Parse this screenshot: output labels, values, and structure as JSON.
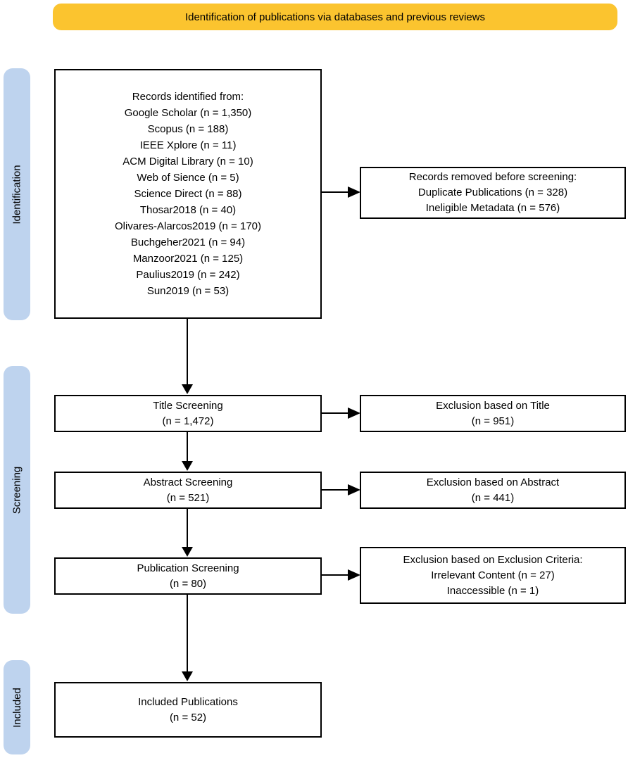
{
  "banner": {
    "title": "Identification of publications via databases and previous reviews"
  },
  "colors": {
    "banner_bg": "#FBC42F",
    "stage_bg": "#BED3EE",
    "ink": "#000000"
  },
  "stages": [
    {
      "label": "Identification"
    },
    {
      "label": "Screening"
    },
    {
      "label": "Included"
    }
  ],
  "boxes": {
    "records_identified": {
      "lines": [
        "Records identified from:",
        "Google Scholar (n = 1,350)",
        "Scopus (n = 188)",
        "IEEE Xplore (n = 11)",
        "ACM Digital Library (n = 10)",
        "Web of Sience (n = 5)",
        "Science Direct (n = 88)",
        "Thosar2018 (n = 40)",
        "Olivares-Alarcos2019 (n = 170)",
        "Buchgeher2021 (n = 94)",
        "Manzoor2021 (n = 125)",
        "Paulius2019 (n = 242)",
        "Sun2019 (n = 53)"
      ]
    },
    "records_removed": {
      "lines": [
        "Records removed before screening:",
        "Duplicate Publications (n = 328)",
        "Ineligible Metadata (n = 576)"
      ]
    },
    "title_screening": {
      "lines": [
        "Title Screening",
        "(n = 1,472)"
      ]
    },
    "exclusion_title": {
      "lines": [
        "Exclusion based on Title",
        "(n = 951)"
      ]
    },
    "abstract_screening": {
      "lines": [
        "Abstract Screening",
        "(n = 521)"
      ]
    },
    "exclusion_abstract": {
      "lines": [
        "Exclusion based on Abstract",
        "(n = 441)"
      ]
    },
    "publication_screening": {
      "lines": [
        "Publication Screening",
        "(n = 80)"
      ]
    },
    "exclusion_criteria": {
      "lines": [
        "Exclusion based on Exclusion Criteria:",
        "Irrelevant Content (n = 27)",
        "Inaccessible (n = 1)"
      ]
    },
    "included_publications": {
      "lines": [
        "Included Publications",
        "(n = 52)"
      ]
    }
  }
}
